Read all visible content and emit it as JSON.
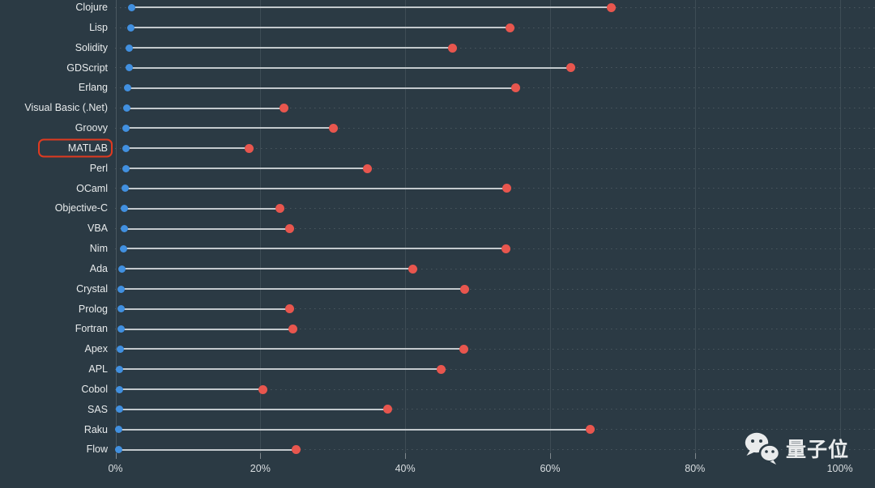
{
  "colors": {
    "background": "#2b3a44",
    "label_text": "#e8ebec",
    "axis_text": "#d9dee1",
    "gridline": "#3e4c55",
    "row_guide_dots": "#4b5860",
    "connector_line": "#c3c9cd",
    "blue_dot": "#4190e0",
    "red_dot": "#e8564e",
    "highlight_box": "#e03a20",
    "watermark_text": "#e9ebec"
  },
  "watermark": {
    "icon": "wechat-icon",
    "text": "量子位"
  },
  "chart_data": {
    "type": "scatter",
    "variant": "horizontal dumbbell / lollipop dot plot",
    "title": "",
    "xlabel": "",
    "ylabel": "",
    "xlim": [
      0,
      100
    ],
    "x_tick_values": [
      0,
      20,
      40,
      60,
      80,
      100
    ],
    "x_ticks": [
      "0%",
      "20%",
      "40%",
      "60%",
      "80%",
      "100%"
    ],
    "grid": "solid vertical gridlines at each tick; faint dotted horizontal guide per row",
    "legend": "none",
    "highlighted_category": "MATLAB",
    "categories": [
      "Clojure",
      "Lisp",
      "Solidity",
      "GDScript",
      "Erlang",
      "Visual Basic (.Net)",
      "Groovy",
      "MATLAB",
      "Perl",
      "OCaml",
      "Objective-C",
      "VBA",
      "Nim",
      "Ada",
      "Crystal",
      "Prolog",
      "Fortran",
      "Apex",
      "APL",
      "Cobol",
      "SAS",
      "Raku",
      "Flow"
    ],
    "series": [
      {
        "name": "blue-left-marker",
        "color": "#4190e0",
        "values": [
          2.2,
          2.1,
          1.9,
          1.9,
          1.7,
          1.6,
          1.5,
          1.5,
          1.4,
          1.3,
          1.2,
          1.2,
          1.1,
          0.9,
          0.8,
          0.75,
          0.75,
          0.65,
          0.55,
          0.55,
          0.55,
          0.4,
          0.4
        ]
      },
      {
        "name": "red-right-marker",
        "color": "#e8564e",
        "values": [
          68.5,
          54.5,
          46.5,
          62.9,
          55.3,
          23.3,
          30.1,
          18.4,
          34.8,
          54.0,
          22.7,
          24.0,
          53.9,
          41.0,
          48.2,
          24.0,
          24.5,
          48.1,
          45.0,
          20.3,
          37.6,
          65.5,
          24.9
        ]
      }
    ]
  }
}
